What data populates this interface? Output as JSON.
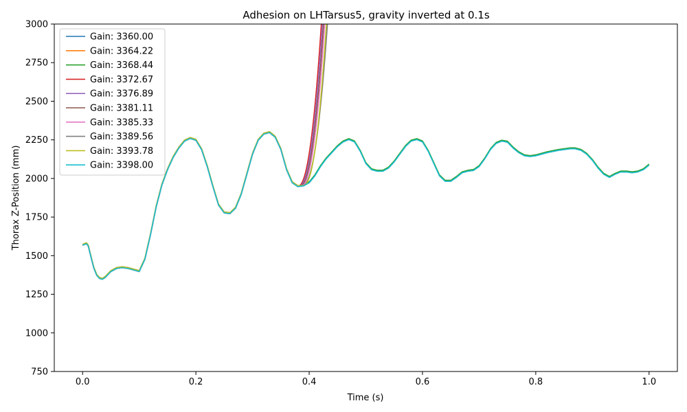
{
  "chart_data": {
    "type": "line",
    "title": "Adhesion on LHTarsus5, gravity inverted at 0.1s",
    "xlabel": "Time (s)",
    "ylabel": "Thorax Z-Position (mm)",
    "xlim": [
      -0.05,
      1.05
    ],
    "ylim": [
      750,
      3000
    ],
    "x_ticks": [
      0.0,
      0.2,
      0.4,
      0.6,
      0.8,
      1.0
    ],
    "x_tick_labels": [
      "0.0",
      "0.2",
      "0.4",
      "0.6",
      "0.8",
      "1.0"
    ],
    "y_ticks": [
      750,
      1000,
      1250,
      1500,
      1750,
      2000,
      2250,
      2500,
      2750,
      3000
    ],
    "y_tick_labels": [
      "750",
      "1000",
      "1250",
      "1500",
      "1750",
      "2000",
      "2250",
      "2500",
      "2750",
      "3000"
    ],
    "grid": false,
    "legend_position": "upper-left",
    "base_curve": {
      "x": [
        0.0,
        0.003,
        0.007,
        0.01,
        0.015,
        0.02,
        0.025,
        0.03,
        0.035,
        0.04,
        0.05,
        0.06,
        0.07,
        0.08,
        0.09,
        0.1,
        0.11,
        0.12,
        0.13,
        0.14,
        0.15,
        0.16,
        0.17,
        0.18,
        0.19,
        0.2,
        0.21,
        0.22,
        0.23,
        0.24,
        0.25,
        0.26,
        0.27,
        0.28,
        0.29,
        0.3,
        0.31,
        0.32,
        0.33,
        0.34,
        0.35,
        0.36,
        0.37,
        0.38,
        0.39,
        0.4,
        0.41,
        0.42,
        0.43,
        0.44,
        0.45,
        0.46,
        0.47,
        0.48,
        0.49,
        0.5,
        0.51,
        0.52,
        0.53,
        0.54,
        0.55,
        0.56,
        0.57,
        0.58,
        0.59,
        0.6,
        0.61,
        0.62,
        0.63,
        0.64,
        0.65,
        0.66,
        0.67,
        0.68,
        0.69,
        0.7,
        0.71,
        0.72,
        0.73,
        0.74,
        0.75,
        0.76,
        0.77,
        0.78,
        0.79,
        0.8,
        0.82,
        0.84,
        0.86,
        0.87,
        0.88,
        0.89,
        0.9,
        0.91,
        0.92,
        0.93,
        0.94,
        0.95,
        0.96,
        0.97,
        0.98,
        0.99,
        1.0
      ],
      "y": [
        1570,
        1575,
        1580,
        1565,
        1490,
        1420,
        1375,
        1355,
        1350,
        1362,
        1400,
        1420,
        1425,
        1420,
        1410,
        1400,
        1480,
        1640,
        1820,
        1960,
        2060,
        2140,
        2200,
        2245,
        2262,
        2250,
        2190,
        2080,
        1950,
        1830,
        1780,
        1775,
        1810,
        1900,
        2030,
        2160,
        2250,
        2290,
        2300,
        2270,
        2190,
        2060,
        1975,
        1950,
        1955,
        1975,
        2020,
        2080,
        2130,
        2170,
        2210,
        2240,
        2255,
        2240,
        2180,
        2100,
        2060,
        2050,
        2050,
        2070,
        2110,
        2160,
        2210,
        2245,
        2255,
        2240,
        2180,
        2100,
        2020,
        1985,
        1985,
        2010,
        2040,
        2050,
        2055,
        2080,
        2130,
        2190,
        2230,
        2245,
        2238,
        2200,
        2170,
        2150,
        2145,
        2150,
        2170,
        2185,
        2195,
        2195,
        2185,
        2160,
        2120,
        2070,
        2030,
        2010,
        2030,
        2045,
        2045,
        2040,
        2045,
        2060,
        2090
      ]
    },
    "series": [
      {
        "name": "Gain: 3360.00",
        "color": "#1f77b4",
        "diverge": null
      },
      {
        "name": "Gain: 3364.22",
        "color": "#ff7f0e",
        "diverge": null
      },
      {
        "name": "Gain: 3368.44",
        "color": "#2ca02c",
        "diverge": null
      },
      {
        "name": "Gain: 3372.67",
        "color": "#d62728",
        "diverge": {
          "start_x": 0.38,
          "cross_top_x": 0.423
        }
      },
      {
        "name": "Gain: 3376.89",
        "color": "#9467bd",
        "diverge": {
          "start_x": 0.382,
          "cross_top_x": 0.425
        }
      },
      {
        "name": "Gain: 3381.11",
        "color": "#8c564b",
        "diverge": {
          "start_x": 0.384,
          "cross_top_x": 0.427
        }
      },
      {
        "name": "Gain: 3385.33",
        "color": "#e377c2",
        "diverge": {
          "start_x": 0.386,
          "cross_top_x": 0.429
        }
      },
      {
        "name": "Gain: 3389.56",
        "color": "#7f7f7f",
        "diverge": {
          "start_x": 0.388,
          "cross_top_x": 0.434
        }
      },
      {
        "name": "Gain: 3393.78",
        "color": "#bcbd22",
        "diverge": {
          "start_x": 0.39,
          "cross_top_x": 0.432
        }
      },
      {
        "name": "Gain: 3398.00",
        "color": "#17becf",
        "diverge": null
      }
    ]
  }
}
